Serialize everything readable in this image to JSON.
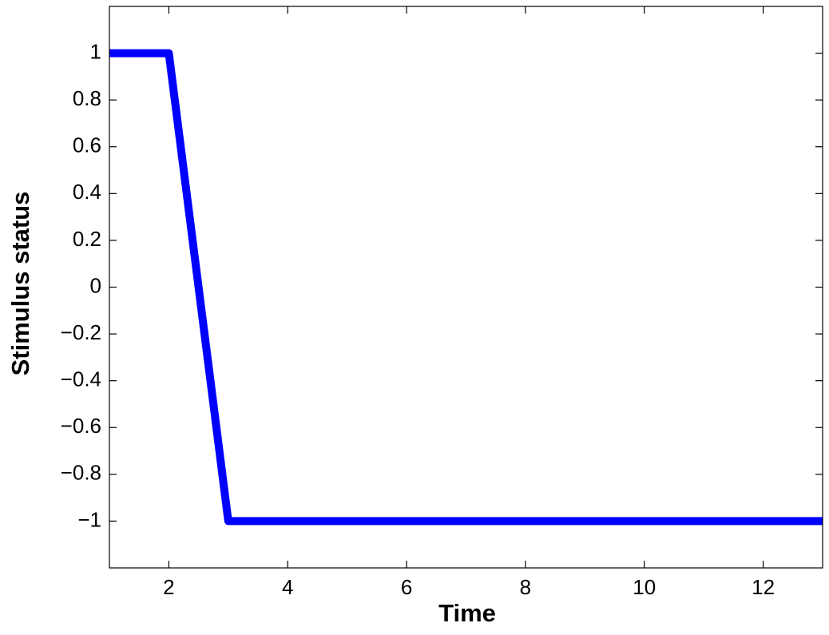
{
  "chart_data": {
    "type": "line",
    "x_label": "Time",
    "y_label": "Stimulus status",
    "x": [
      1,
      2,
      3,
      13
    ],
    "values": [
      1,
      1,
      -1,
      -1
    ],
    "color": "#0000ff",
    "xlim": [
      1,
      13
    ],
    "xticks": [
      2,
      4,
      6,
      8,
      10,
      12
    ],
    "ylim": [
      -1.2,
      1.2
    ],
    "yticks": [
      {
        "value": -1,
        "label": "−1"
      },
      {
        "value": -0.8,
        "label": "−0.8"
      },
      {
        "value": -0.6,
        "label": "−0.6"
      },
      {
        "value": -0.4,
        "label": "−0.4"
      },
      {
        "value": -0.2,
        "label": "−0.2"
      },
      0,
      0.2,
      0.4,
      0.6,
      0.8,
      1
    ],
    "grid": false
  }
}
